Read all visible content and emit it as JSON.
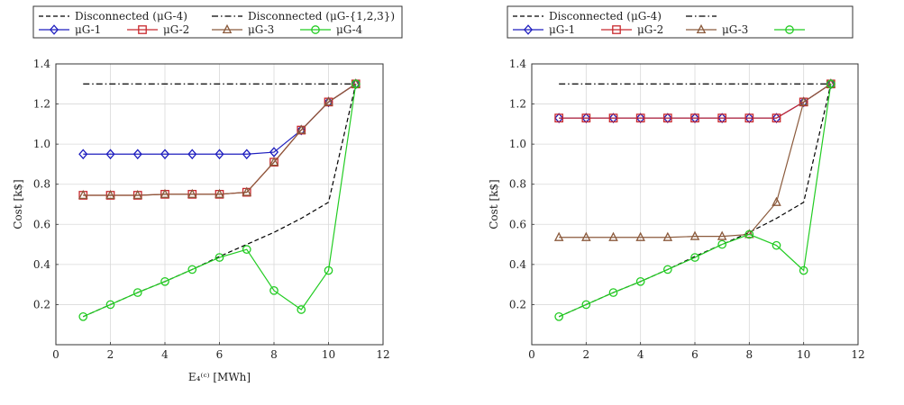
{
  "chart_data": [
    {
      "type": "line",
      "xlabel": "E₄⁽ᶜ⁾ [MWh]",
      "ylabel": "Cost [k$]",
      "xlim": [
        0,
        12
      ],
      "ylim": [
        0.0,
        1.4
      ],
      "xticks": [
        "0",
        "2",
        "4",
        "6",
        "8",
        "10",
        "12"
      ],
      "yticks": [
        "0.2",
        "0.4",
        "0.6",
        "0.8",
        "1.0",
        "1.2",
        "1.4"
      ],
      "legend_placement": "top, above plot",
      "grid": true,
      "series": [
        {
          "name": "Disconnected (μG-4)",
          "style": "dashed",
          "color": "#000000",
          "marker": "none",
          "x": [
            1,
            2,
            3,
            4,
            5,
            6,
            7,
            8,
            9,
            10,
            11
          ],
          "y": [
            0.14,
            0.2,
            0.26,
            0.315,
            0.375,
            0.44,
            0.5,
            0.56,
            0.63,
            0.71,
            1.3
          ]
        },
        {
          "name": "Disconnected (μG-{1,2,3})",
          "style": "dashdot",
          "color": "#000000",
          "marker": "none",
          "x": [
            1,
            11
          ],
          "y": [
            1.3,
            1.3
          ]
        },
        {
          "name": "μG-1",
          "style": "solid",
          "color": "#1f1fbf",
          "marker": "diamond",
          "x": [
            1,
            2,
            3,
            4,
            5,
            6,
            7,
            8,
            9,
            10,
            11
          ],
          "y": [
            0.95,
            0.95,
            0.95,
            0.95,
            0.95,
            0.95,
            0.95,
            0.96,
            1.07,
            1.21,
            1.3
          ]
        },
        {
          "name": "μG-2",
          "style": "solid",
          "color": "#c8282d",
          "marker": "square",
          "x": [
            1,
            2,
            3,
            4,
            5,
            6,
            7,
            8,
            9,
            10,
            11
          ],
          "y": [
            0.745,
            0.745,
            0.745,
            0.75,
            0.75,
            0.75,
            0.76,
            0.91,
            1.07,
            1.21,
            1.3
          ]
        },
        {
          "name": "μG-3",
          "style": "solid",
          "color": "#8b5a3c",
          "marker": "triangle",
          "x": [
            1,
            2,
            3,
            4,
            5,
            6,
            7,
            8,
            9,
            10,
            11
          ],
          "y": [
            0.745,
            0.745,
            0.745,
            0.75,
            0.75,
            0.75,
            0.76,
            0.91,
            1.07,
            1.21,
            1.3
          ]
        },
        {
          "name": "μG-4",
          "style": "solid",
          "color": "#22cc22",
          "marker": "circle",
          "x": [
            1,
            2,
            3,
            4,
            5,
            6,
            7,
            8,
            9,
            10,
            11
          ],
          "y": [
            0.14,
            0.2,
            0.26,
            0.315,
            0.375,
            0.435,
            0.475,
            0.27,
            0.175,
            0.37,
            1.3
          ]
        }
      ]
    },
    {
      "type": "line",
      "xlabel": "",
      "ylabel": "Cost [k$]",
      "xlim": [
        0,
        12
      ],
      "ylim": [
        0.0,
        1.4
      ],
      "xticks": [
        "0",
        "2",
        "4",
        "6",
        "8",
        "10",
        "12"
      ],
      "yticks": [
        "0.2",
        "0.4",
        "0.6",
        "0.8",
        "1.0",
        "1.2",
        "1.4"
      ],
      "legend_placement": "top, above plot",
      "grid": true,
      "series": [
        {
          "name": "Disconnected (μG-4)",
          "style": "dashed",
          "color": "#000000",
          "marker": "none",
          "x": [
            1,
            2,
            3,
            4,
            5,
            6,
            7,
            8,
            9,
            10,
            11
          ],
          "y": [
            0.14,
            0.2,
            0.26,
            0.315,
            0.375,
            0.44,
            0.5,
            0.56,
            0.63,
            0.71,
            1.3
          ]
        },
        {
          "name": "",
          "style": "dashdot",
          "color": "#000000",
          "marker": "none",
          "x": [
            1,
            11
          ],
          "y": [
            1.3,
            1.3
          ]
        },
        {
          "name": "μG-1",
          "style": "solid",
          "color": "#1f1fbf",
          "marker": "diamond",
          "x": [
            1,
            2,
            3,
            4,
            5,
            6,
            7,
            8,
            9,
            10,
            11
          ],
          "y": [
            1.13,
            1.13,
            1.13,
            1.13,
            1.13,
            1.13,
            1.13,
            1.13,
            1.13,
            1.21,
            1.3
          ]
        },
        {
          "name": "μG-2",
          "style": "solid",
          "color": "#c8282d",
          "marker": "square",
          "x": [
            1,
            2,
            3,
            4,
            5,
            6,
            7,
            8,
            9,
            10,
            11
          ],
          "y": [
            1.13,
            1.13,
            1.13,
            1.13,
            1.13,
            1.13,
            1.13,
            1.13,
            1.13,
            1.21,
            1.3
          ]
        },
        {
          "name": "μG-3",
          "style": "solid",
          "color": "#8b5a3c",
          "marker": "triangle",
          "x": [
            1,
            2,
            3,
            4,
            5,
            6,
            7,
            8,
            9,
            10,
            11
          ],
          "y": [
            0.535,
            0.535,
            0.535,
            0.535,
            0.535,
            0.54,
            0.54,
            0.55,
            0.71,
            1.21,
            1.3
          ]
        },
        {
          "name": "",
          "style": "solid",
          "color": "#22cc22",
          "marker": "circle",
          "x": [
            1,
            2,
            3,
            4,
            5,
            6,
            7,
            8,
            9,
            10,
            11
          ],
          "y": [
            0.14,
            0.2,
            0.26,
            0.315,
            0.375,
            0.435,
            0.5,
            0.55,
            0.495,
            0.37,
            1.3
          ]
        }
      ]
    }
  ]
}
